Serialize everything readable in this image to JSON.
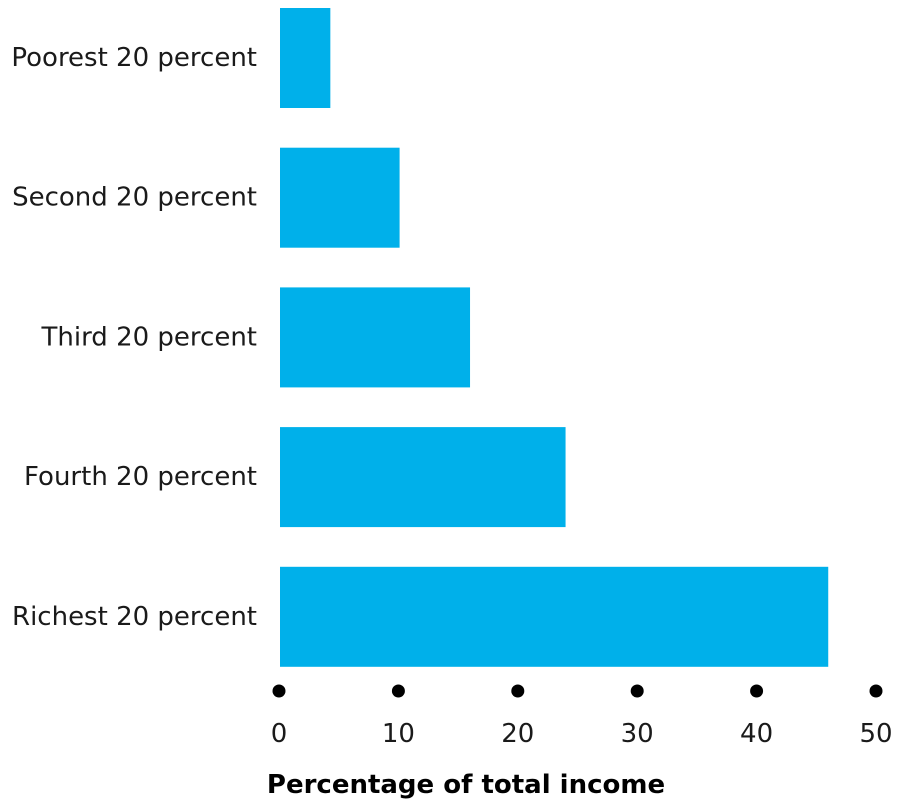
{
  "chart_data": {
    "type": "bar",
    "orientation": "horizontal",
    "categories": [
      "Poorest 20 percent",
      "Second 20 percent",
      "Third 20 percent",
      "Fourth 20 percent",
      "Richest 20 percent"
    ],
    "values": [
      4.3,
      10.1,
      16.0,
      24.0,
      46.0
    ],
    "xlabel": "Percentage of total income",
    "ylabel": "",
    "xlim": [
      0,
      50
    ],
    "xticks": [
      "0",
      "10",
      "20",
      "30",
      "40",
      "50"
    ],
    "grid": false,
    "colors": {
      "bar": "#00B0EA",
      "tick_marker": "#000000"
    }
  }
}
